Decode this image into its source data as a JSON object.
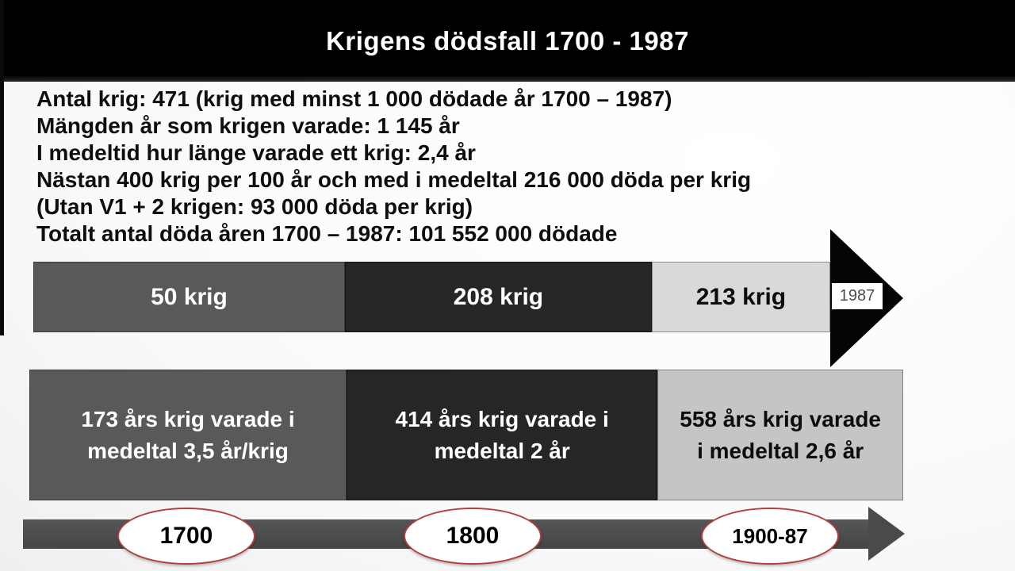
{
  "title": "Krigens dödsfall 1700 - 1987",
  "body": {
    "lines": [
      "Antal krig: 471 (krig med minst 1 000 dödade år 1700 – 1987)",
      "Mängden år som krigen varade: 1 145 år",
      "I medeltid hur länge varade ett krig: 2,4 år",
      "Nästan 400 krig per 100 år och med i medeltal 216 000 döda per krig",
      "(Utan V1 + 2 krigen: 93 000 döda per krig)",
      "Totalt antal döda åren 1700 – 1987: 101 552 000 dödade"
    ]
  },
  "wars_bar": {
    "segments": [
      {
        "label": "50 krig"
      },
      {
        "label": "208 krig"
      },
      {
        "label": "213 krig"
      }
    ],
    "end_badge": "1987"
  },
  "duration_bar": {
    "segments": [
      {
        "line1": "173 års krig varade i",
        "line2": "medeltal 3,5 år/krig"
      },
      {
        "line1": "414 års krig varade i",
        "line2": "medeltal 2 år"
      },
      {
        "line1": "558 års krig varade",
        "line2": "i medeltal 2,6 år"
      }
    ]
  },
  "timeline": {
    "markers": [
      "1700",
      "1800",
      "1900-87"
    ]
  },
  "colors": {
    "title_bar": "#000000",
    "segment_gray": "#595959",
    "segment_black": "#262626",
    "segment_light_top": "#d9d9d9",
    "segment_light_bottom": "#c5c5c5",
    "timeline_arrow": "#4a4a4a",
    "marker_outline": "#b5413f",
    "badge_text": "#4d4d4d"
  }
}
